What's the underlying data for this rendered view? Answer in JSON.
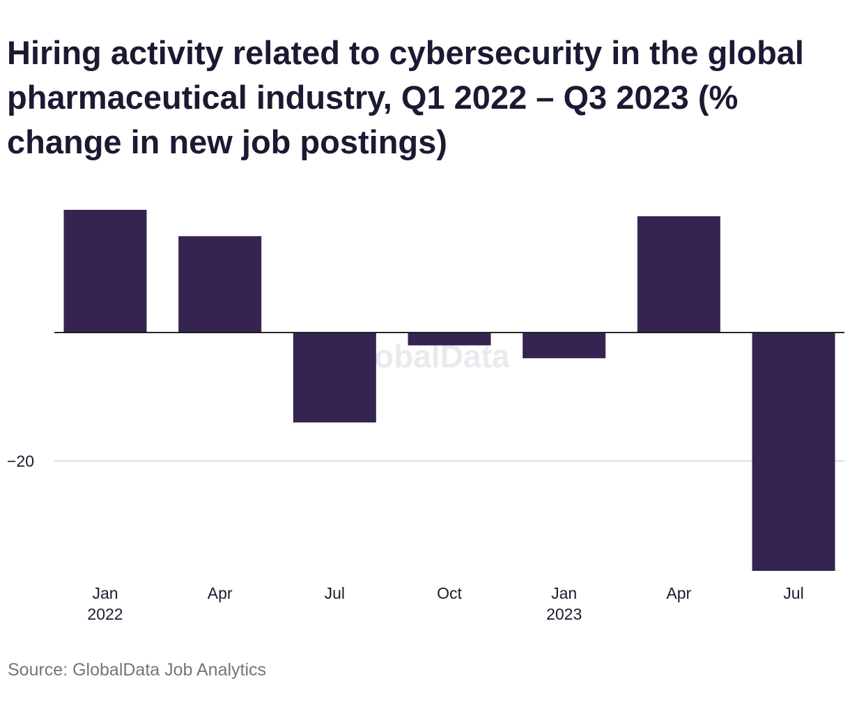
{
  "chart_data": {
    "type": "bar",
    "title": "Hiring activity related to cybersecurity in the global pharmaceutical industry, Q1 2022 – Q3 2023 (% change in new job postings)",
    "categories": [
      "Q1 2022",
      "Q2 2022",
      "Q3 2022",
      "Q4 2022",
      "Q1 2023",
      "Q2 2023",
      "Q3 2023"
    ],
    "x_tick_labels": [
      {
        "month": "Jan",
        "year": "2022"
      },
      {
        "month": "Apr",
        "year": ""
      },
      {
        "month": "Jul",
        "year": ""
      },
      {
        "month": "Oct",
        "year": ""
      },
      {
        "month": "Jan",
        "year": "2023"
      },
      {
        "month": "Apr",
        "year": ""
      },
      {
        "month": "Jul",
        "year": ""
      }
    ],
    "values": [
      19.1,
      15.0,
      -14.0,
      -2.0,
      -4.0,
      18.1,
      -37.1
    ],
    "ylim": [
      -37.1,
      19.1
    ],
    "y_ticks": [
      {
        "value": -20,
        "label": "−20"
      }
    ],
    "grid": true,
    "bar_color": "#352452",
    "xlabel": "",
    "ylabel": ""
  },
  "watermark": "GlobalData",
  "source": "Source: GlobalData Job Analytics"
}
